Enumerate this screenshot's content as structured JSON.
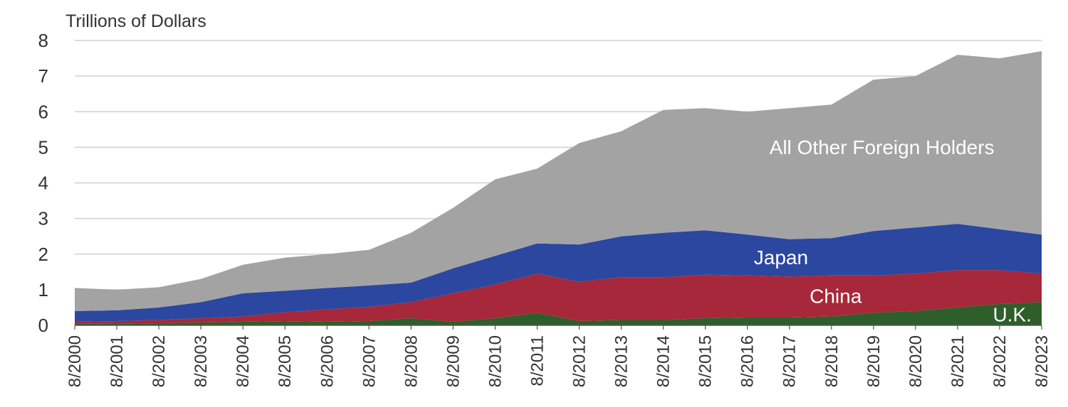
{
  "chart_data": {
    "type": "area",
    "stacked": true,
    "ylabel": "Trillions of Dollars",
    "ylim": [
      0,
      8
    ],
    "yticks": [
      0,
      1,
      2,
      3,
      4,
      5,
      6,
      7,
      8
    ],
    "grid": true,
    "x_tick_labels": [
      "8/2000",
      "8/2001",
      "8/2002",
      "8/2003",
      "8/2004",
      "8/2005",
      "8/2006",
      "8/2007",
      "8/2008",
      "8/2009",
      "8/2010",
      "8/2011",
      "8/2012",
      "8/2013",
      "8/2014",
      "8/2015",
      "8/2016",
      "8/2017",
      "8/2018",
      "8/2019",
      "8/2020",
      "8/2021",
      "8/2022",
      "8/2023"
    ],
    "x": [
      "8/2000",
      "8/2001",
      "8/2002",
      "8/2003",
      "8/2004",
      "8/2005",
      "8/2006",
      "8/2007",
      "8/2008",
      "8/2009",
      "8/2010",
      "8/2011",
      "8/2012",
      "8/2013",
      "8/2014",
      "8/2015",
      "8/2016",
      "8/2017",
      "8/2018",
      "8/2019",
      "8/2020",
      "8/2021",
      "8/2022",
      "8/2023"
    ],
    "series": [
      {
        "name": "U.K.",
        "color": "#2e5e2a",
        "values": [
          0.05,
          0.04,
          0.06,
          0.08,
          0.1,
          0.12,
          0.1,
          0.12,
          0.2,
          0.1,
          0.2,
          0.35,
          0.12,
          0.15,
          0.15,
          0.2,
          0.22,
          0.22,
          0.25,
          0.35,
          0.4,
          0.5,
          0.6,
          0.65
        ]
      },
      {
        "name": "China",
        "color": "#a6283a",
        "values": [
          0.05,
          0.08,
          0.09,
          0.12,
          0.15,
          0.25,
          0.35,
          0.4,
          0.45,
          0.8,
          0.95,
          1.1,
          1.1,
          1.2,
          1.2,
          1.22,
          1.18,
          1.15,
          1.15,
          1.05,
          1.05,
          1.05,
          0.95,
          0.8
        ]
      },
      {
        "name": "Japan",
        "color": "#2c47a0",
        "values": [
          0.3,
          0.3,
          0.35,
          0.45,
          0.65,
          0.6,
          0.6,
          0.6,
          0.55,
          0.7,
          0.8,
          0.85,
          1.05,
          1.15,
          1.25,
          1.25,
          1.15,
          1.05,
          1.05,
          1.25,
          1.3,
          1.3,
          1.15,
          1.1
        ]
      },
      {
        "name": "All Other Foreign Holders",
        "color": "#a3a3a3",
        "values": [
          0.65,
          0.58,
          0.57,
          0.65,
          0.8,
          0.93,
          0.95,
          1.0,
          1.4,
          1.7,
          2.15,
          2.1,
          2.85,
          2.95,
          3.45,
          3.43,
          3.45,
          3.68,
          3.75,
          4.25,
          4.25,
          4.75,
          4.8,
          5.15
        ]
      }
    ]
  }
}
